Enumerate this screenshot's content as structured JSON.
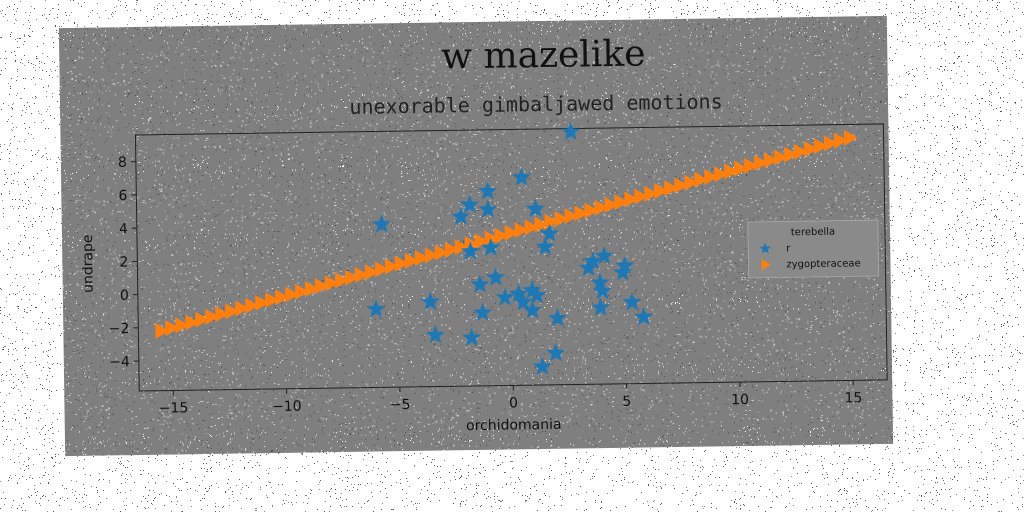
{
  "chart_data": {
    "type": "scatter",
    "title": "w mazelike",
    "subtitle": "unexorable gimbaljawed emotions",
    "xlabel": "orchidomania",
    "ylabel": "undrape",
    "xlim": [
      -16.5,
      16.5
    ],
    "ylim": [
      -5.8,
      9.6
    ],
    "xticks": [
      -15,
      -10,
      -5,
      0,
      5,
      10,
      15
    ],
    "yticks": [
      -4,
      -2,
      0,
      2,
      4,
      6,
      8
    ],
    "grid": false,
    "legend": {
      "title": "terebella",
      "placement": "center-right",
      "entries": [
        {
          "label": "r",
          "marker": "star",
          "color": "#1f77b4"
        },
        {
          "label": "zygopteraceae",
          "marker": "triangle-right",
          "color": "#ff7f0e"
        }
      ]
    },
    "series": [
      {
        "name": "r",
        "marker": "star",
        "color": "#1f77b4",
        "points": [
          [
            2.7,
            9.4
          ],
          [
            0.5,
            6.7
          ],
          [
            -1.0,
            5.9
          ],
          [
            -1.8,
            5.1
          ],
          [
            -1.0,
            4.8
          ],
          [
            1.1,
            4.8
          ],
          [
            -2.2,
            4.4
          ],
          [
            -5.7,
            4.0
          ],
          [
            1.7,
            3.3
          ],
          [
            1.5,
            2.5
          ],
          [
            -0.9,
            2.5
          ],
          [
            -1.8,
            2.3
          ],
          [
            4.1,
            1.9
          ],
          [
            3.6,
            1.6
          ],
          [
            5.0,
            1.3
          ],
          [
            3.4,
            1.2
          ],
          [
            -0.7,
            0.7
          ],
          [
            4.9,
            0.9
          ],
          [
            -1.4,
            0.3
          ],
          [
            3.9,
            0.3
          ],
          [
            4.0,
            -0.2
          ],
          [
            0.9,
            -0.1
          ],
          [
            0.3,
            -0.3
          ],
          [
            1.1,
            -0.4
          ],
          [
            -0.3,
            -0.5
          ],
          [
            -3.6,
            -0.7
          ],
          [
            0.5,
            -0.8
          ],
          [
            5.3,
            -0.9
          ],
          [
            -6.0,
            -1.1
          ],
          [
            3.9,
            -1.2
          ],
          [
            0.9,
            -1.3
          ],
          [
            -1.3,
            -1.4
          ],
          [
            2.0,
            -1.8
          ],
          [
            5.8,
            -1.8
          ],
          [
            -3.4,
            -2.7
          ],
          [
            -1.8,
            -2.9
          ],
          [
            1.9,
            -3.9
          ],
          [
            1.3,
            -4.7
          ]
        ]
      },
      {
        "name": "zygopteraceae",
        "marker": "triangle-right",
        "color": "#ff7f0e",
        "line": {
          "x_start": -15.5,
          "x_end": 15.0,
          "y_start": -2.2,
          "y_end": 8.8,
          "count": 70
        }
      }
    ]
  }
}
